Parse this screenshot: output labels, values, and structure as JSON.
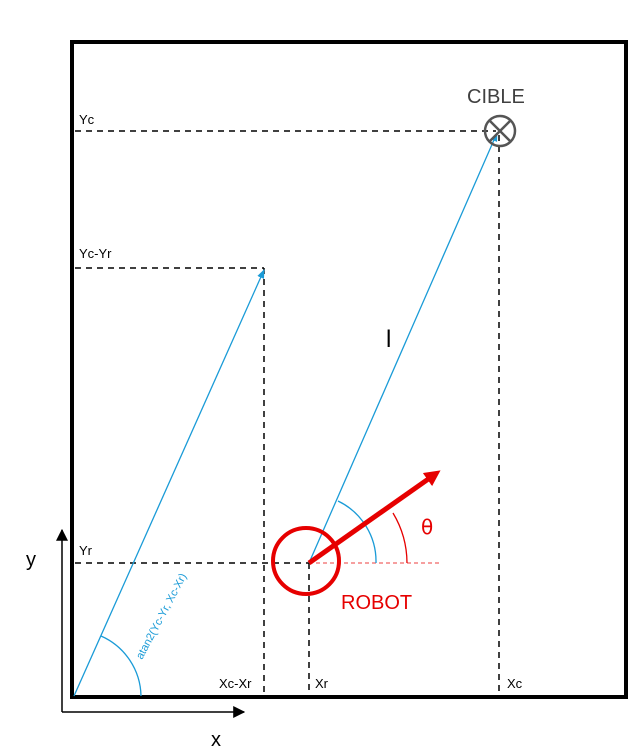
{
  "labels": {
    "target": "CIBLE",
    "robot": "ROBOT",
    "theta": "θ",
    "distance": "l",
    "axis_x": "x",
    "axis_y": "y",
    "yc": "Yc",
    "yc_yr": "Yc-Yr",
    "yr": "Yr",
    "xc_xr": "Xc-Xr",
    "xr": "Xr",
    "xc": "Xc",
    "angle_formula": "atan2(Yc-Yr, Xc-Xr)"
  },
  "colors": {
    "frame": "#000000",
    "vector": "#1a9bd7",
    "robot": "#e60000",
    "target": "#555555",
    "dashed": "#000000"
  },
  "icons": {
    "target": "crossed-circle-icon",
    "robot": "circle-icon",
    "heading": "arrow-icon"
  }
}
